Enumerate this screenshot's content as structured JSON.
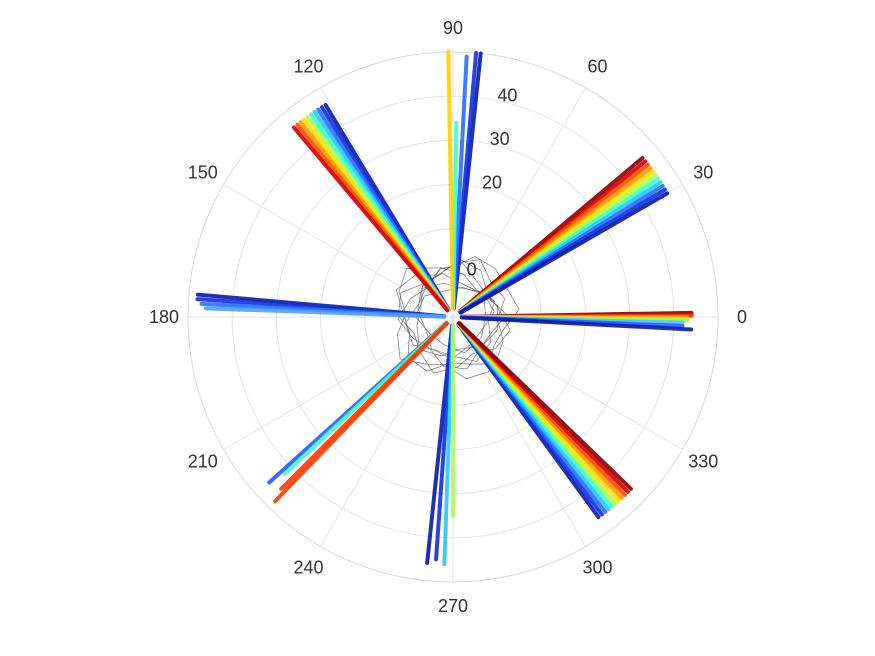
{
  "chart_data": {
    "type": "scatter",
    "coordinate_system": "polar",
    "title": "",
    "theta_unit": "degrees",
    "theta_ticks": [
      0,
      30,
      60,
      90,
      120,
      150,
      180,
      210,
      240,
      270,
      300,
      330
    ],
    "theta_tick_labels": [
      "0",
      "30",
      "60",
      "90",
      "120",
      "150",
      "180",
      "210",
      "240",
      "270",
      "300",
      "330"
    ],
    "r_ticks": [
      0,
      20,
      30,
      40
    ],
    "r_tick_labels": [
      "0",
      "20",
      "30",
      "40"
    ],
    "rlim": [
      -10,
      50
    ],
    "grid": true,
    "colormap": "jet",
    "center_polygon_radius": 4,
    "rays": [
      {
        "theta": 1,
        "r_end": 44,
        "color": "#8b0000"
      },
      {
        "theta": 0.6,
        "r_end": 44,
        "color": "#d40000"
      },
      {
        "theta": 0.3,
        "r_end": 44,
        "color": "#ff3a00"
      },
      {
        "theta": 0.0,
        "r_end": 43,
        "color": "#ff8c00"
      },
      {
        "theta": -0.4,
        "r_end": 43,
        "color": "#ffd000"
      },
      {
        "theta": -0.8,
        "r_end": 43,
        "color": "#9bff5d"
      },
      {
        "theta": -1.4,
        "r_end": 42,
        "color": "#4fc3ff"
      },
      {
        "theta": -2.2,
        "r_end": 42,
        "color": "#2a5cff"
      },
      {
        "theta": -3.0,
        "r_end": 44,
        "color": "#0a1aa8"
      },
      {
        "theta": 40,
        "r_end": 46,
        "color": "#8b0000"
      },
      {
        "theta": 39,
        "r_end": 46,
        "color": "#d40000"
      },
      {
        "theta": 38,
        "r_end": 46,
        "color": "#ff4a00"
      },
      {
        "theta": 37,
        "r_end": 46,
        "color": "#ff9a00"
      },
      {
        "theta": 36,
        "r_end": 46,
        "color": "#ffe000"
      },
      {
        "theta": 35,
        "r_end": 46,
        "color": "#aaff50"
      },
      {
        "theta": 34,
        "r_end": 46,
        "color": "#3fffc0"
      },
      {
        "theta": 33,
        "r_end": 46,
        "color": "#28c8ff"
      },
      {
        "theta": 32,
        "r_end": 46,
        "color": "#2870ff"
      },
      {
        "theta": 31,
        "r_end": 46,
        "color": "#1030e0"
      },
      {
        "theta": 30,
        "r_end": 46,
        "color": "#0a1aa8"
      },
      {
        "theta": 84,
        "r_end": 50,
        "color": "#0a1aa8"
      },
      {
        "theta": 85,
        "r_end": 50,
        "color": "#1030e0"
      },
      {
        "theta": 87,
        "r_end": 49,
        "color": "#2870ff"
      },
      {
        "theta": 89,
        "r_end": 34,
        "color": "#3fffc0"
      },
      {
        "theta": 91,
        "r_end": 50,
        "color": "#ffd000"
      },
      {
        "theta": 121,
        "r_end": 46,
        "color": "#0a1aa8"
      },
      {
        "theta": 122,
        "r_end": 46,
        "color": "#1030e0"
      },
      {
        "theta": 123,
        "r_end": 46,
        "color": "#2870ff"
      },
      {
        "theta": 124,
        "r_end": 46,
        "color": "#28c8ff"
      },
      {
        "theta": 125,
        "r_end": 46,
        "color": "#3fffc0"
      },
      {
        "theta": 126,
        "r_end": 46,
        "color": "#aaff50"
      },
      {
        "theta": 127,
        "r_end": 46,
        "color": "#ffe000"
      },
      {
        "theta": 128,
        "r_end": 46,
        "color": "#ff9a00"
      },
      {
        "theta": 129,
        "r_end": 46,
        "color": "#ff4a00"
      },
      {
        "theta": 130,
        "r_end": 46,
        "color": "#d40000"
      },
      {
        "theta": 175,
        "r_end": 48,
        "color": "#0a1aa8"
      },
      {
        "theta": 176,
        "r_end": 48,
        "color": "#1030e0"
      },
      {
        "theta": 177,
        "r_end": 47,
        "color": "#2870ff"
      },
      {
        "theta": 178,
        "r_end": 46,
        "color": "#4fa0ff"
      },
      {
        "theta": 222,
        "r_end": 46,
        "color": "#2a5cff"
      },
      {
        "theta": 223,
        "r_end": 42,
        "color": "#3fffc0"
      },
      {
        "theta": 225,
        "r_end": 45,
        "color": "#ff3a00"
      },
      {
        "theta": 226,
        "r_end": 48,
        "color": "#ff3a00"
      },
      {
        "theta": 264,
        "r_end": 46,
        "color": "#0a1aa8"
      },
      {
        "theta": 266,
        "r_end": 45,
        "color": "#1030e0"
      },
      {
        "theta": 268,
        "r_end": 46,
        "color": "#28c8ff"
      },
      {
        "theta": 270,
        "r_end": 35,
        "color": "#aaff50"
      },
      {
        "theta": 306,
        "r_end": 46,
        "color": "#0a1aa8"
      },
      {
        "theta": 307,
        "r_end": 46,
        "color": "#1030e0"
      },
      {
        "theta": 308,
        "r_end": 46,
        "color": "#2870ff"
      },
      {
        "theta": 309,
        "r_end": 46,
        "color": "#28c8ff"
      },
      {
        "theta": 310,
        "r_end": 46,
        "color": "#3fffc0"
      },
      {
        "theta": 311,
        "r_end": 46,
        "color": "#aaff50"
      },
      {
        "theta": 312,
        "r_end": 46,
        "color": "#ffe000"
      },
      {
        "theta": 313,
        "r_end": 46,
        "color": "#ff9a00"
      },
      {
        "theta": 314,
        "r_end": 46,
        "color": "#ff4a00"
      },
      {
        "theta": 315,
        "r_end": 46,
        "color": "#d40000"
      },
      {
        "theta": 316,
        "r_end": 46,
        "color": "#8b0000"
      }
    ]
  }
}
